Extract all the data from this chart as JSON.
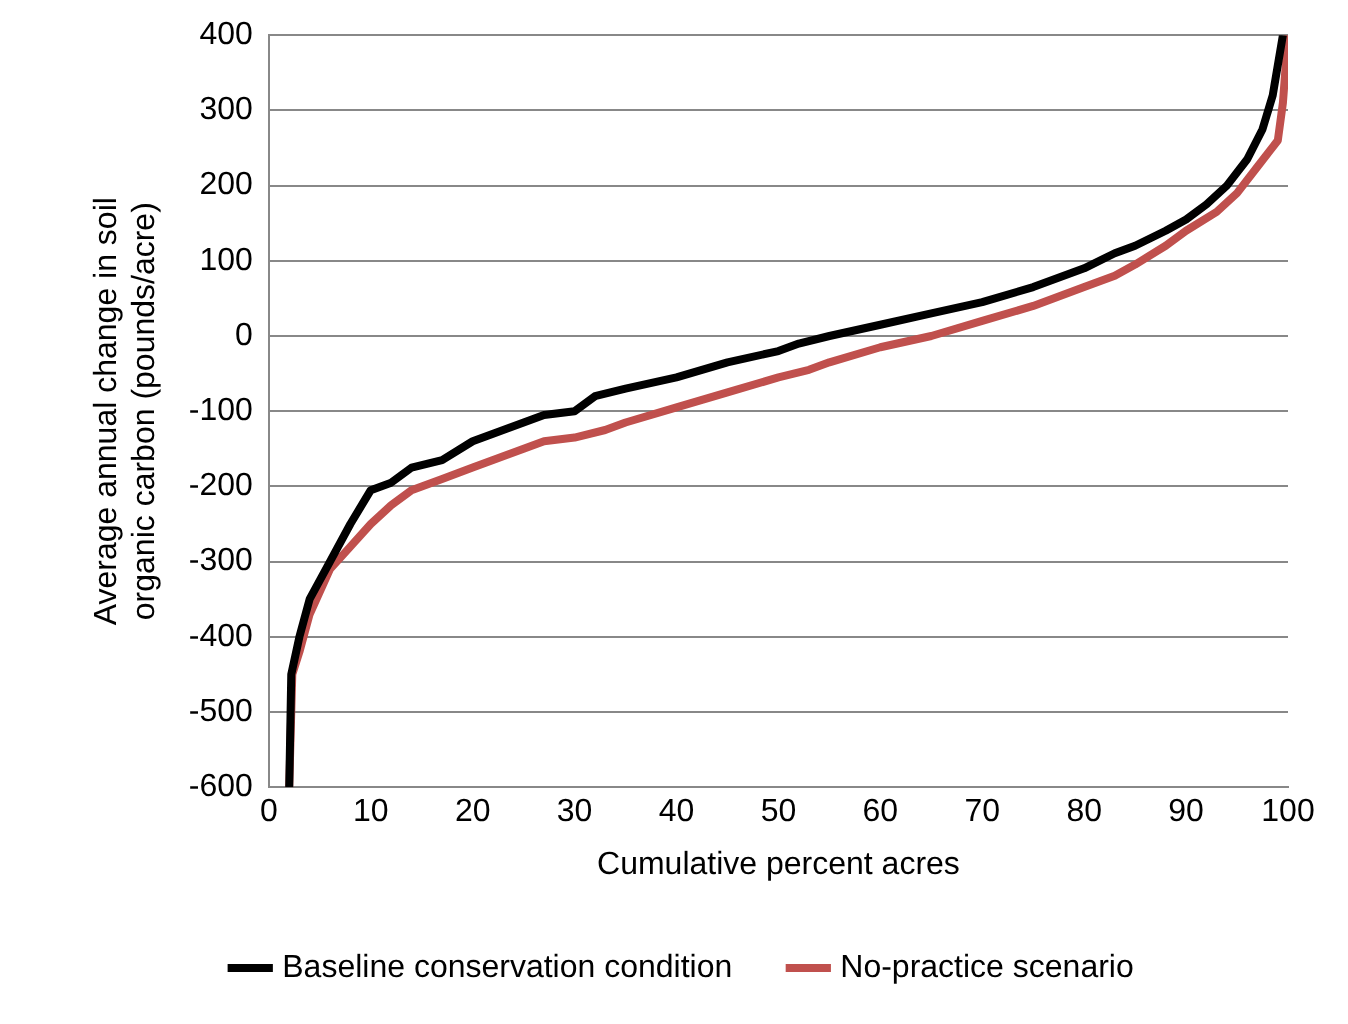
{
  "chart_data": {
    "type": "line",
    "xlabel": "Cumulative percent acres",
    "ylabel": "Average annual change in soil organic carbon (pounds/acre)",
    "xlim": [
      0,
      100
    ],
    "xticks": [
      0,
      10,
      20,
      30,
      40,
      50,
      60,
      70,
      80,
      90,
      100
    ],
    "ylim": [
      -600,
      400
    ],
    "yticks": [
      -600,
      -500,
      -400,
      -300,
      -200,
      -100,
      0,
      100,
      200,
      300,
      400
    ],
    "grid": "y",
    "legend": "bottom",
    "marker": "none",
    "line_style": "solid",
    "series": [
      {
        "name": "Baseline conservation condition",
        "color": "#000000",
        "x": [
          2,
          2.2,
          3,
          4,
          6,
          8,
          10,
          12,
          14,
          17,
          20,
          22,
          25,
          27,
          30,
          32,
          35,
          40,
          45,
          50,
          52,
          55,
          60,
          65,
          70,
          75,
          80,
          83,
          85,
          88,
          90,
          92,
          94,
          96,
          97.5,
          98.5,
          99.5
        ],
        "values": [
          -600,
          -450,
          -400,
          -350,
          -300,
          -250,
          -205,
          -195,
          -175,
          -165,
          -140,
          -130,
          -115,
          -105,
          -100,
          -80,
          -70,
          -55,
          -35,
          -20,
          -10,
          0,
          15,
          30,
          45,
          65,
          90,
          110,
          120,
          140,
          155,
          175,
          200,
          235,
          275,
          320,
          400
        ]
      },
      {
        "name": "No-practice scenario",
        "color": "#c0504d",
        "x": [
          2,
          2.3,
          3,
          4,
          6,
          8,
          10,
          12,
          14,
          17,
          20,
          22,
          25,
          27,
          30,
          33,
          35,
          40,
          45,
          50,
          53,
          55,
          60,
          65,
          70,
          75,
          80,
          83,
          85,
          88,
          90,
          93,
          95,
          97,
          99,
          99.5,
          100
        ],
        "values": [
          -600,
          -450,
          -420,
          -370,
          -310,
          -280,
          -250,
          -225,
          -205,
          -190,
          -175,
          -165,
          -150,
          -140,
          -135,
          -125,
          -115,
          -95,
          -75,
          -55,
          -45,
          -35,
          -15,
          0,
          20,
          40,
          65,
          80,
          95,
          120,
          140,
          165,
          190,
          225,
          260,
          310,
          400
        ]
      }
    ]
  }
}
